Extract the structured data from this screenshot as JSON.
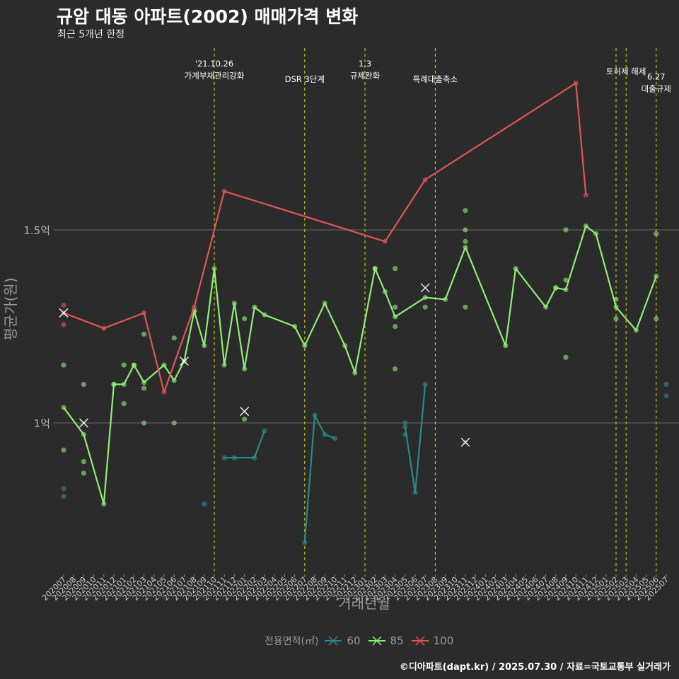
{
  "title": "규암 대동 아파트(2002) 매매가격 변화",
  "subtitle": "최근 5개년 한정",
  "caption": "©디아파트(dapt.kr) / 2025.07.30 / 자료=국토교통부 실거래가",
  "legend": {
    "title": "전용면적(㎡)",
    "items": [
      {
        "label": "60",
        "color": "#2a8a8a"
      },
      {
        "label": "85",
        "color": "#90ee78"
      },
      {
        "label": "100",
        "color": "#e05555"
      }
    ]
  },
  "chart_data": {
    "type": "line",
    "title": "규암 대동 아파트(2002) 매매가격 변화",
    "subtitle": "최근 5개년 한정",
    "xlabel": "거래년월",
    "ylabel": "평균가(원)",
    "ylim": [
      0.65,
      1.99
    ],
    "yticks": [
      {
        "value": 1.0,
        "label": "1억"
      },
      {
        "value": 1.5,
        "label": "1.5억"
      }
    ],
    "grid": true,
    "legend_position": "bottom",
    "months": [
      "202007",
      "202008",
      "202009",
      "202010",
      "202011",
      "202012",
      "202101",
      "202102",
      "202103",
      "202104",
      "202105",
      "202106",
      "202107",
      "202108",
      "202109",
      "202110",
      "202111",
      "202112",
      "202201",
      "202202",
      "202203",
      "202204",
      "202205",
      "202206",
      "202207",
      "202208",
      "202209",
      "202210",
      "202211",
      "202212",
      "202301",
      "202302",
      "202303",
      "202304",
      "202305",
      "202306",
      "202307",
      "202308",
      "202309",
      "202310",
      "202311",
      "202312",
      "202401",
      "202402",
      "202403",
      "202404",
      "202405",
      "202406",
      "202407",
      "202408",
      "202409",
      "202410",
      "202411",
      "202412",
      "202501",
      "202502",
      "202503",
      "202504",
      "202505",
      "202506",
      "202507"
    ],
    "events": [
      {
        "month": "202110",
        "label": [
          "'21.10.26",
          "가계부채관리강화"
        ],
        "level": 0
      },
      {
        "month": "202207",
        "label": [
          "DSR 3단계"
        ],
        "level": 2
      },
      {
        "month": "202301",
        "label": [
          "1.3",
          "규제완화"
        ],
        "level": 0
      },
      {
        "month": "202308",
        "label": [
          "특례대출축소"
        ],
        "level": 2
      },
      {
        "month": "202502",
        "label": [],
        "level": 1
      },
      {
        "month": "202503",
        "label": [
          "토허제 해제"
        ],
        "level": 1
      },
      {
        "month": "202506",
        "label": [
          "6.27",
          "대출규제"
        ],
        "level": 1.7
      }
    ],
    "series": [
      {
        "name": "60",
        "color": "#2a8a8a",
        "segments": [
          [
            [
              "202111",
              0.91
            ],
            [
              "202112",
              0.91
            ],
            [
              "202202",
              0.91
            ],
            [
              "202203",
              0.98
            ]
          ],
          [
            [
              "202207",
              0.69
            ],
            [
              "202208",
              1.02
            ],
            [
              "202209",
              0.97
            ],
            [
              "202210",
              0.96
            ]
          ],
          [
            [
              "202305",
              0.99
            ],
            [
              "202306",
              0.82
            ],
            [
              "202307",
              1.1
            ]
          ]
        ],
        "points": [
          [
            "202007",
            0.83
          ],
          [
            "202007",
            0.81
          ],
          [
            "202109",
            0.79
          ],
          [
            "202305",
            1.0
          ],
          [
            "202305",
            0.97
          ],
          [
            "202311",
            0.95
          ],
          [
            "202507",
            1.1
          ],
          [
            "202507",
            1.07
          ]
        ],
        "crosses": [
          [
            "202311",
            0.95
          ]
        ]
      },
      {
        "name": "85",
        "color": "#90ee78",
        "line": [
          [
            "202007",
            1.04
          ],
          [
            "202009",
            0.97
          ],
          [
            "202011",
            0.79
          ],
          [
            "202012",
            1.1
          ],
          [
            "202101",
            1.1
          ],
          [
            "202102",
            1.15
          ],
          [
            "202103",
            1.105
          ],
          [
            "202105",
            1.15
          ],
          [
            "202106",
            1.11
          ],
          [
            "202107",
            1.16
          ],
          [
            "202108",
            1.29
          ],
          [
            "202109",
            1.2
          ],
          [
            "202110",
            1.4
          ],
          [
            "202111",
            1.15
          ],
          [
            "202112",
            1.31
          ],
          [
            "202201",
            1.14
          ],
          [
            "202202",
            1.3
          ],
          [
            "202203",
            1.28
          ],
          [
            "202206",
            1.25
          ],
          [
            "202207",
            1.2
          ],
          [
            "202209",
            1.31
          ],
          [
            "202211",
            1.2
          ],
          [
            "202212",
            1.13
          ],
          [
            "202302",
            1.4
          ],
          [
            "202303",
            1.34
          ],
          [
            "202304",
            1.275
          ],
          [
            "202307",
            1.325
          ],
          [
            "202309",
            1.32
          ],
          [
            "202311",
            1.455
          ],
          [
            "202403",
            1.2
          ],
          [
            "202404",
            1.4
          ],
          [
            "202407",
            1.3
          ],
          [
            "202408",
            1.35
          ],
          [
            "202409",
            1.345
          ],
          [
            "202411",
            1.51
          ],
          [
            "202412",
            1.49
          ],
          [
            "202502",
            1.3
          ],
          [
            "202504",
            1.24
          ],
          [
            "202506",
            1.38
          ]
        ],
        "points": [
          [
            "202007",
            1.15
          ],
          [
            "202007",
            0.93
          ],
          [
            "202009",
            1.1
          ],
          [
            "202009",
            0.9
          ],
          [
            "202009",
            0.87
          ],
          [
            "202012",
            1.1
          ],
          [
            "202101",
            1.15
          ],
          [
            "202101",
            1.05
          ],
          [
            "202102",
            1.15
          ],
          [
            "202103",
            1.23
          ],
          [
            "202103",
            1.09
          ],
          [
            "202103",
            1.0
          ],
          [
            "202106",
            1.22
          ],
          [
            "202106",
            1.0
          ],
          [
            "202108",
            1.29
          ],
          [
            "202201",
            1.27
          ],
          [
            "202201",
            1.01
          ],
          [
            "202302",
            1.4
          ],
          [
            "202304",
            1.4
          ],
          [
            "202304",
            1.3
          ],
          [
            "202304",
            1.25
          ],
          [
            "202304",
            1.14
          ],
          [
            "202307",
            1.3
          ],
          [
            "202311",
            1.55
          ],
          [
            "202311",
            1.5
          ],
          [
            "202311",
            1.47
          ],
          [
            "202311",
            1.3
          ],
          [
            "202409",
            1.5
          ],
          [
            "202409",
            1.37
          ],
          [
            "202409",
            1.17
          ],
          [
            "202408",
            1.35
          ],
          [
            "202502",
            1.32
          ],
          [
            "202502",
            1.27
          ],
          [
            "202506",
            1.49
          ],
          [
            "202506",
            1.27
          ]
        ],
        "crosses": [
          [
            "202009",
            1.0
          ],
          [
            "202107",
            1.16
          ],
          [
            "202201",
            1.03
          ],
          [
            "202307",
            1.35
          ]
        ]
      },
      {
        "name": "100",
        "color": "#e05555",
        "line": [
          [
            "202007",
            1.285
          ],
          [
            "202011",
            1.245
          ],
          [
            "202103",
            1.285
          ],
          [
            "202105",
            1.08
          ],
          [
            "202108",
            1.3
          ],
          [
            "202111",
            1.6
          ],
          [
            "202303",
            1.47
          ],
          [
            "202307",
            1.63
          ],
          [
            "202410",
            1.88
          ],
          [
            "202411",
            1.59
          ]
        ],
        "points": [
          [
            "202007",
            1.305
          ],
          [
            "202007",
            1.255
          ]
        ],
        "crosses": [
          [
            "202007",
            1.285
          ]
        ]
      }
    ]
  }
}
